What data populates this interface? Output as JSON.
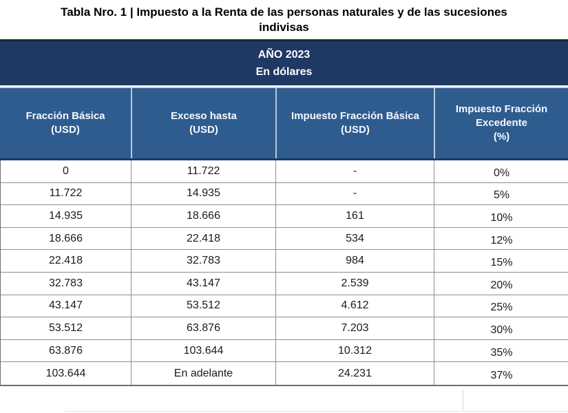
{
  "palette": {
    "banner_bg": "#1F3864",
    "banner_text": "#FFFFFF",
    "header_bg": "#2E5C8F",
    "header_text": "#F7FAFF",
    "body_text": "#1A1A1A",
    "grid_line": "#8E8E8E"
  },
  "title": {
    "line1": "Tabla Nro. 1 | Impuesto a la Renta de las personas naturales y de las sucesiones",
    "line2": "indivisas"
  },
  "banner": {
    "line1": "AÑO 2023",
    "line2": "En dólares"
  },
  "table": {
    "columns": [
      {
        "label": "Fracción Básica",
        "sub": "(USD)"
      },
      {
        "label": "Exceso hasta",
        "sub": "(USD)"
      },
      {
        "label": "Impuesto Fracción Básica",
        "sub": "(USD)"
      },
      {
        "label": "Impuesto Fracción Excedente",
        "sub": "(%)"
      }
    ],
    "rows": [
      [
        "0",
        "11.722",
        "-",
        "0%"
      ],
      [
        "11.722",
        "14.935",
        "-",
        "5%"
      ],
      [
        "14.935",
        "18.666",
        "161",
        "10%"
      ],
      [
        "18.666",
        "22.418",
        "534",
        "12%"
      ],
      [
        "22.418",
        "32.783",
        "984",
        "15%"
      ],
      [
        "32.783",
        "43.147",
        "2.539",
        "20%"
      ],
      [
        "43.147",
        "53.512",
        "4.612",
        "25%"
      ],
      [
        "53.512",
        "63.876",
        "7.203",
        "30%"
      ],
      [
        "63.876",
        "103.644",
        "10.312",
        "35%"
      ],
      [
        "103.644",
        "En adelante",
        "24.231",
        "37%"
      ]
    ]
  }
}
